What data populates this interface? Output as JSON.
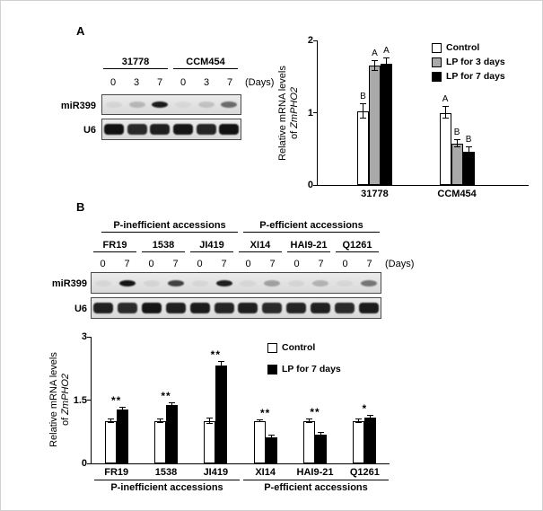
{
  "figure": {
    "panelA": {
      "label": "A",
      "blot": {
        "group_labels": [
          "31778",
          "CCM454"
        ],
        "lane_labels": [
          "0",
          "3",
          "7",
          "0",
          "3",
          "7"
        ],
        "days_label": "(Days)",
        "row_labels": [
          "miR399",
          "U6"
        ],
        "mir399_bands": [
          0.06,
          0.2,
          0.92,
          0.05,
          0.15,
          0.55
        ],
        "u6_bands": [
          0.97,
          0.85,
          0.9,
          0.95,
          0.88,
          0.97
        ]
      }
    },
    "panelB": {
      "label": "B",
      "blot": {
        "group_labels": [
          "P-inefficient accessions",
          "P-efficient accessions"
        ],
        "accession_labels": [
          "FR19",
          "1538",
          "JI419",
          "XI14",
          "HAI9-21",
          "Q1261"
        ],
        "lane_labels": [
          "0",
          "7",
          "0",
          "7",
          "0",
          "7",
          "0",
          "7",
          "0",
          "7",
          "0",
          "7"
        ],
        "days_label": "(Days)",
        "row_labels": [
          "miR399",
          "U6"
        ],
        "mir399_bands": [
          0.05,
          0.95,
          0.06,
          0.75,
          0.05,
          0.9,
          0.05,
          0.3,
          0.06,
          0.22,
          0.05,
          0.5
        ],
        "u6_bands": [
          0.9,
          0.85,
          0.95,
          0.9,
          0.92,
          0.88,
          0.9,
          0.85,
          0.88,
          0.9,
          0.85,
          0.92
        ]
      },
      "bottom_groups": [
        "P-inefficient accessions",
        "P-efficient accessions"
      ]
    }
  },
  "chart_data": [
    {
      "type": "bar",
      "panel": "A",
      "categories": [
        "31778",
        "CCM454"
      ],
      "series": [
        {
          "name": "Control",
          "color": "#ffffff",
          "values": [
            1.02,
            1.0
          ],
          "errors": [
            0.1,
            0.08
          ],
          "labels": [
            "B",
            "A"
          ]
        },
        {
          "name": "LP for 3 days",
          "color": "#a9a9a9",
          "values": [
            1.65,
            0.57
          ],
          "errors": [
            0.07,
            0.05
          ],
          "labels": [
            "A",
            "B"
          ]
        },
        {
          "name": "LP for 7 days",
          "color": "#000000",
          "values": [
            1.68,
            0.46
          ],
          "errors": [
            0.07,
            0.06
          ],
          "labels": [
            "A",
            "B"
          ]
        }
      ],
      "ylabel": "Relative mRNA levels of ZmPHO2",
      "ylabel_line1": "Relative mRNA levels",
      "ylabel_line2_prefix": "of ",
      "ylabel_italic": "ZmPHO2",
      "xlabel": "",
      "ylim": [
        0,
        2
      ],
      "yticks": [
        0,
        1,
        2
      ],
      "grid": false,
      "legend_position": "top-right"
    },
    {
      "type": "bar",
      "panel": "B",
      "categories": [
        "FR19",
        "1538",
        "JI419",
        "XI14",
        "HAI9-21",
        "Q1261"
      ],
      "series": [
        {
          "name": "Control",
          "color": "#ffffff",
          "values": [
            1.0,
            1.0,
            1.0,
            1.0,
            1.0,
            1.0
          ],
          "errors": [
            0.05,
            0.04,
            0.06,
            0.03,
            0.04,
            0.04
          ]
        },
        {
          "name": "LP for 7 days",
          "color": "#000000",
          "values": [
            1.27,
            1.38,
            2.33,
            0.62,
            0.68,
            1.08
          ],
          "errors": [
            0.05,
            0.05,
            0.07,
            0.04,
            0.05,
            0.04
          ]
        }
      ],
      "group_annotations": [
        "**",
        "**",
        "**",
        "**",
        "**",
        "*"
      ],
      "category_groups": [
        {
          "label": "P-inefficient accessions",
          "categories": [
            "FR19",
            "1538",
            "JI419"
          ]
        },
        {
          "label": "P-efficient accessions",
          "categories": [
            "XI14",
            "HAI9-21",
            "Q1261"
          ]
        }
      ],
      "ylabel": "Relative mRNA levels of ZmPHO2",
      "ylabel_line1": "Relative mRNA levels",
      "ylabel_line2_prefix": "of ",
      "ylabel_italic": "ZmPHO2",
      "xlabel": "",
      "ylim": [
        0,
        3
      ],
      "yticks": [
        0,
        1.5,
        3
      ],
      "grid": false,
      "legend_position": "top-right"
    }
  ]
}
